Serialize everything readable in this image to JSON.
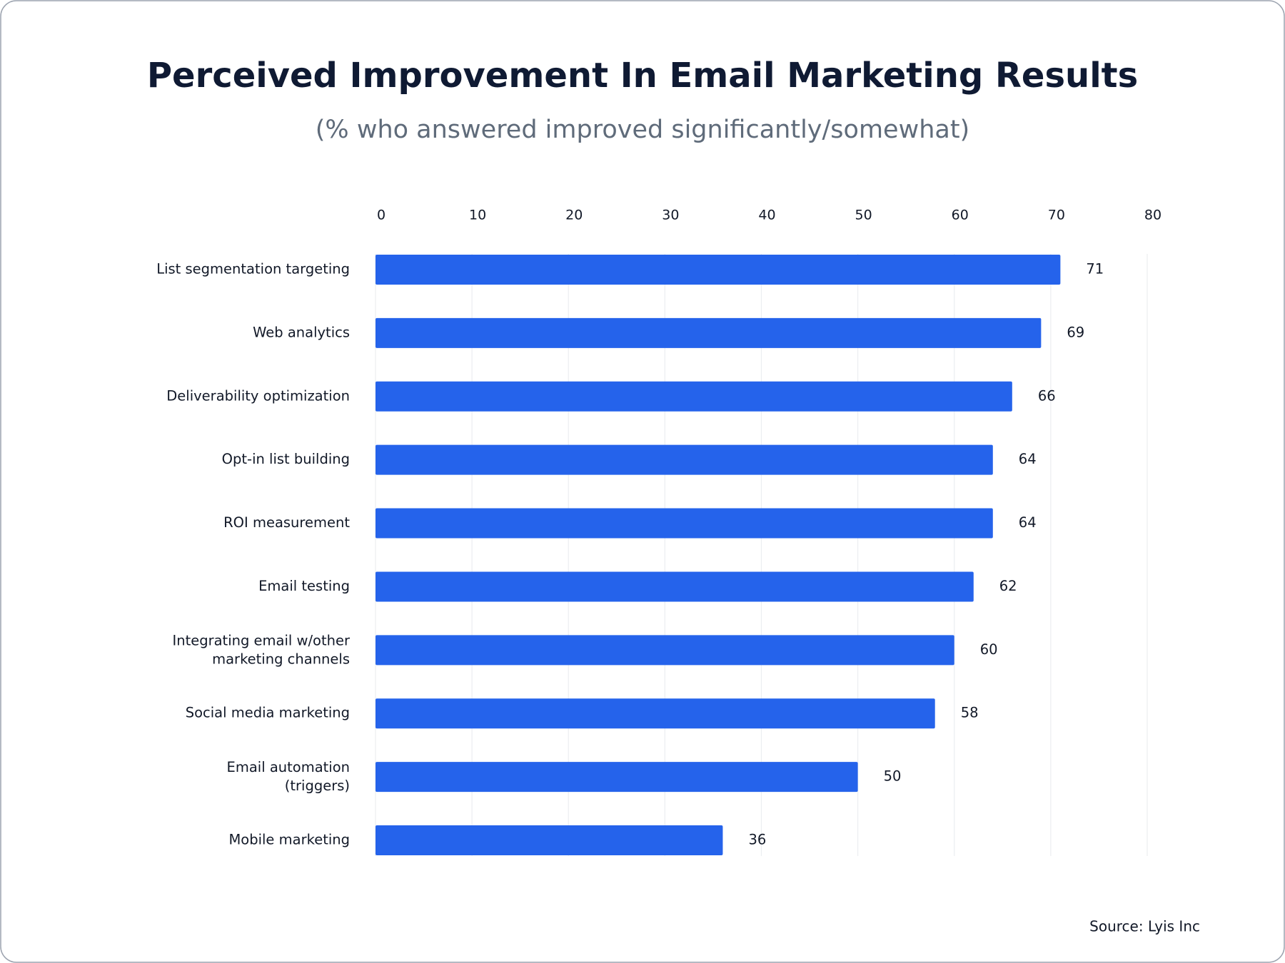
{
  "chart_data": {
    "type": "bar",
    "orientation": "horizontal",
    "title": "Perceived Improvement In Email Marketing Results",
    "subtitle": "(% who answered improved significantly/somewhat)",
    "source": "Source: Lyis Inc",
    "categories": [
      "List segmentation targeting",
      "Web analytics",
      "Deliverability optimization",
      "Opt-in list building",
      "ROI measurement",
      "Email testing",
      "Integrating email w/other\nmarketing channels",
      "Social media marketing",
      "Email automation\n(triggers)",
      "Mobile marketing"
    ],
    "values": [
      71,
      69,
      66,
      64,
      64,
      62,
      60,
      58,
      50,
      36
    ],
    "color": "#2563eb",
    "xlim": [
      0,
      80
    ],
    "xticks": [
      0,
      10,
      20,
      30,
      40,
      50,
      60,
      70,
      80
    ],
    "grid": true
  }
}
